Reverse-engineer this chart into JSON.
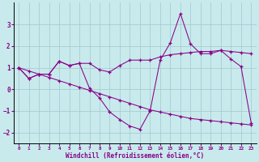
{
  "xlabel": "Windchill (Refroidissement éolien,°C)",
  "background_color": "#c8eaec",
  "grid_color": "#a0c8cc",
  "line_color": "#880088",
  "xlim": [
    -0.5,
    23.5
  ],
  "ylim": [
    -2.5,
    4.0
  ],
  "yticks": [
    -2,
    -1,
    0,
    1,
    2,
    3
  ],
  "xticks": [
    0,
    1,
    2,
    3,
    4,
    5,
    6,
    7,
    8,
    9,
    10,
    11,
    12,
    13,
    14,
    15,
    16,
    17,
    18,
    19,
    20,
    21,
    22,
    23
  ],
  "series_linear_x": [
    0,
    1,
    2,
    3,
    4,
    5,
    6,
    7,
    8,
    9,
    10,
    11,
    12,
    13,
    14,
    15,
    16,
    17,
    18,
    19,
    20,
    21,
    22,
    23
  ],
  "series_linear_y": [
    1.0,
    0.85,
    0.7,
    0.55,
    0.4,
    0.25,
    0.1,
    -0.05,
    -0.2,
    -0.35,
    -0.5,
    -0.65,
    -0.8,
    -0.95,
    -1.05,
    -1.15,
    -1.25,
    -1.35,
    -1.4,
    -1.45,
    -1.5,
    -1.55,
    -1.6,
    -1.65
  ],
  "series_curved_x": [
    0,
    1,
    2,
    3,
    4,
    5,
    6,
    7,
    8,
    9,
    10,
    11,
    12,
    13,
    14,
    15,
    16,
    17,
    18,
    19,
    20,
    21,
    22,
    23
  ],
  "series_curved_y": [
    1.0,
    0.5,
    0.7,
    0.7,
    1.3,
    1.1,
    1.2,
    1.2,
    0.9,
    0.8,
    1.1,
    1.35,
    1.35,
    1.35,
    1.5,
    1.6,
    1.65,
    1.7,
    1.75,
    1.75,
    1.8,
    1.75,
    1.7,
    1.65
  ],
  "series_jagged_x": [
    0,
    1,
    2,
    3,
    4,
    5,
    6,
    7,
    8,
    9,
    10,
    11,
    12,
    13,
    14,
    15,
    16,
    17,
    18,
    19,
    20,
    21,
    22,
    23
  ],
  "series_jagged_y": [
    1.0,
    0.5,
    0.7,
    0.7,
    1.3,
    1.1,
    1.2,
    0.05,
    -0.4,
    -1.05,
    -1.4,
    -1.7,
    -1.85,
    -1.0,
    1.35,
    2.15,
    3.5,
    2.1,
    1.65,
    1.65,
    1.8,
    1.4,
    1.05,
    -1.55
  ]
}
